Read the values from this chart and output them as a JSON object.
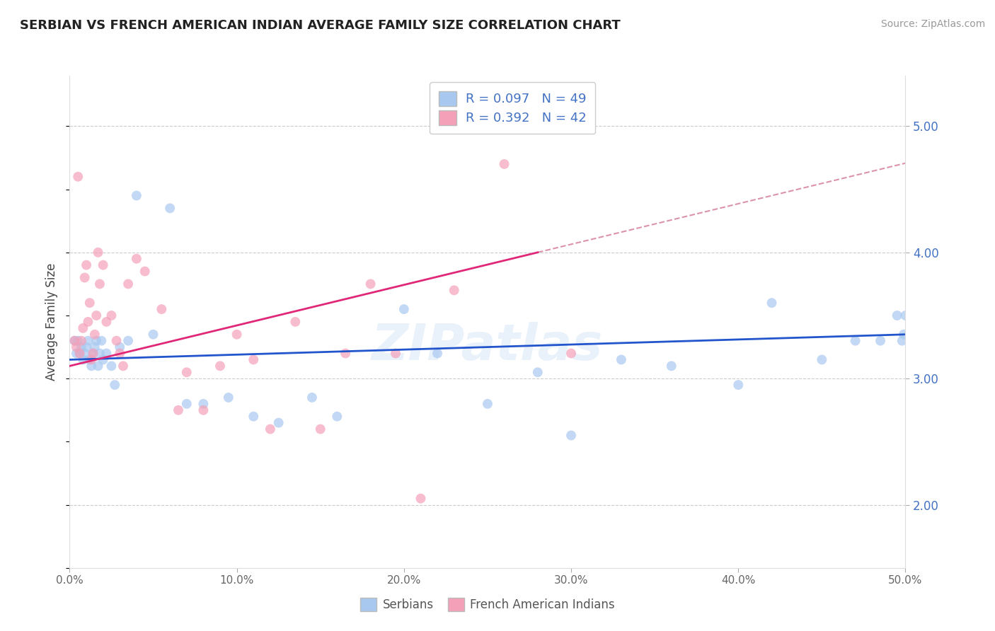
{
  "title": "SERBIAN VS FRENCH AMERICAN INDIAN AVERAGE FAMILY SIZE CORRELATION CHART",
  "source": "Source: ZipAtlas.com",
  "ylabel": "Average Family Size",
  "xlim": [
    0.0,
    50.0
  ],
  "ylim": [
    1.5,
    5.4
  ],
  "yticks": [
    2.0,
    3.0,
    4.0,
    5.0
  ],
  "xticks": [
    0.0,
    10.0,
    20.0,
    30.0,
    40.0,
    50.0
  ],
  "color_serbian": "#a8c8f0",
  "color_french": "#f4a0b8",
  "line_color_serbian": "#2255cc",
  "line_color_french": "#e02878",
  "line_color_dashed": "#cc6688",
  "watermark": "ZIPatlas",
  "serbian_x": [
    0.3,
    0.4,
    0.5,
    0.6,
    0.7,
    0.8,
    0.9,
    1.0,
    1.1,
    1.2,
    1.3,
    1.4,
    1.5,
    1.6,
    1.7,
    1.8,
    1.9,
    2.0,
    2.2,
    2.5,
    2.7,
    3.0,
    3.5,
    4.0,
    5.0,
    6.0,
    7.0,
    8.0,
    9.5,
    11.0,
    12.5,
    14.5,
    16.0,
    20.0,
    22.0,
    25.0,
    28.0,
    30.0,
    33.0,
    36.0,
    40.0,
    42.0,
    45.0,
    47.0,
    48.5,
    49.5,
    49.8,
    49.9,
    50.0
  ],
  "serbian_y": [
    3.3,
    3.2,
    3.3,
    3.2,
    3.25,
    3.15,
    3.2,
    3.25,
    3.3,
    3.15,
    3.1,
    3.2,
    3.25,
    3.3,
    3.1,
    3.2,
    3.3,
    3.15,
    3.2,
    3.1,
    2.95,
    3.25,
    3.3,
    4.45,
    3.35,
    4.35,
    2.8,
    2.8,
    2.85,
    2.7,
    2.65,
    2.85,
    2.7,
    3.55,
    3.2,
    2.8,
    3.05,
    2.55,
    3.15,
    3.1,
    2.95,
    3.6,
    3.15,
    3.3,
    3.3,
    3.5,
    3.3,
    3.35,
    3.5
  ],
  "french_x": [
    0.3,
    0.4,
    0.5,
    0.6,
    0.7,
    0.8,
    0.9,
    1.0,
    1.1,
    1.2,
    1.3,
    1.4,
    1.5,
    1.6,
    1.7,
    1.8,
    2.0,
    2.2,
    2.5,
    2.8,
    3.0,
    3.2,
    3.5,
    4.0,
    4.5,
    5.5,
    6.5,
    7.0,
    8.0,
    9.0,
    10.0,
    11.0,
    12.0,
    13.5,
    15.0,
    16.5,
    18.0,
    19.5,
    21.0,
    23.0,
    26.0,
    30.0
  ],
  "french_y": [
    3.3,
    3.25,
    4.6,
    3.2,
    3.3,
    3.4,
    3.8,
    3.9,
    3.45,
    3.6,
    3.15,
    3.2,
    3.35,
    3.5,
    4.0,
    3.75,
    3.9,
    3.45,
    3.5,
    3.3,
    3.2,
    3.1,
    3.75,
    3.95,
    3.85,
    3.55,
    2.75,
    3.05,
    2.75,
    3.1,
    3.35,
    3.15,
    2.6,
    3.45,
    2.6,
    3.2,
    3.75,
    3.2,
    2.05,
    3.7,
    4.7,
    3.2
  ]
}
